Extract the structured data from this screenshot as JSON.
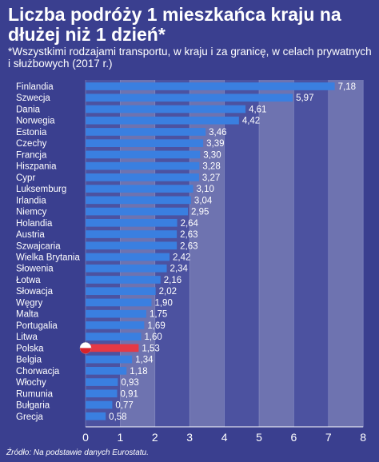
{
  "title": "Liczba podróży 1 mieszkańca kraju na dłużej niż 1 dzień*",
  "subtitle": "*Wszystkimi rodzajami transportu, w kraju i za granicę, w celach prywatnych i służbowych (2017 r.)",
  "source": "Źródło: Na podstawie danych Eurostatu.",
  "colors": {
    "background": "#3a3f8f",
    "band_light": "#6e73b0",
    "band_dark": "#4c52a0",
    "bar": "#3a7fe0",
    "highlight_bar": "#e53945"
  },
  "chart_data": {
    "type": "bar",
    "orientation": "horizontal",
    "categories": [
      "Finlandia",
      "Szwecja",
      "Dania",
      "Norwegia",
      "Estonia",
      "Czechy",
      "Francja",
      "Hiszpania",
      "Cypr",
      "Luksemburg",
      "Irlandia",
      "Niemcy",
      "Holandia",
      "Austria",
      "Szwajcaria",
      "Wielka Brytania",
      "Słowenia",
      "Łotwa",
      "Słowacja",
      "Węgry",
      "Malta",
      "Portugalia",
      "Litwa",
      "Polska",
      "Belgia",
      "Chorwacja",
      "Włochy",
      "Rumunia",
      "Bułgaria",
      "Grecja"
    ],
    "values": [
      7.18,
      5.97,
      4.61,
      4.42,
      3.46,
      3.39,
      3.3,
      3.28,
      3.27,
      3.1,
      3.04,
      2.95,
      2.64,
      2.63,
      2.63,
      2.42,
      2.34,
      2.16,
      2.02,
      1.9,
      1.75,
      1.69,
      1.6,
      1.53,
      1.34,
      1.18,
      0.93,
      0.91,
      0.77,
      0.58
    ],
    "value_labels": [
      "7,18",
      "5,97",
      "4,61",
      "4,42",
      "3,46",
      "3,39",
      "3,30",
      "3,28",
      "3,27",
      "3,10",
      "3,04",
      "2,95",
      "2,64",
      "2,63",
      "2,63",
      "2,42",
      "2,34",
      "2,16",
      "2,02",
      "1,90",
      "1,75",
      "1,69",
      "1,60",
      "1,53",
      "1,34",
      "1,18",
      "0,93",
      "0,91",
      "0,77",
      "0,58"
    ],
    "highlight": "Polska",
    "highlight_icon": "polish-flag-icon",
    "xlim": [
      0,
      8
    ],
    "xticks": [
      0,
      1,
      2,
      3,
      4,
      5,
      6,
      7,
      8
    ],
    "grid": "alternating vertical bands",
    "xlabel": "",
    "ylabel": ""
  }
}
